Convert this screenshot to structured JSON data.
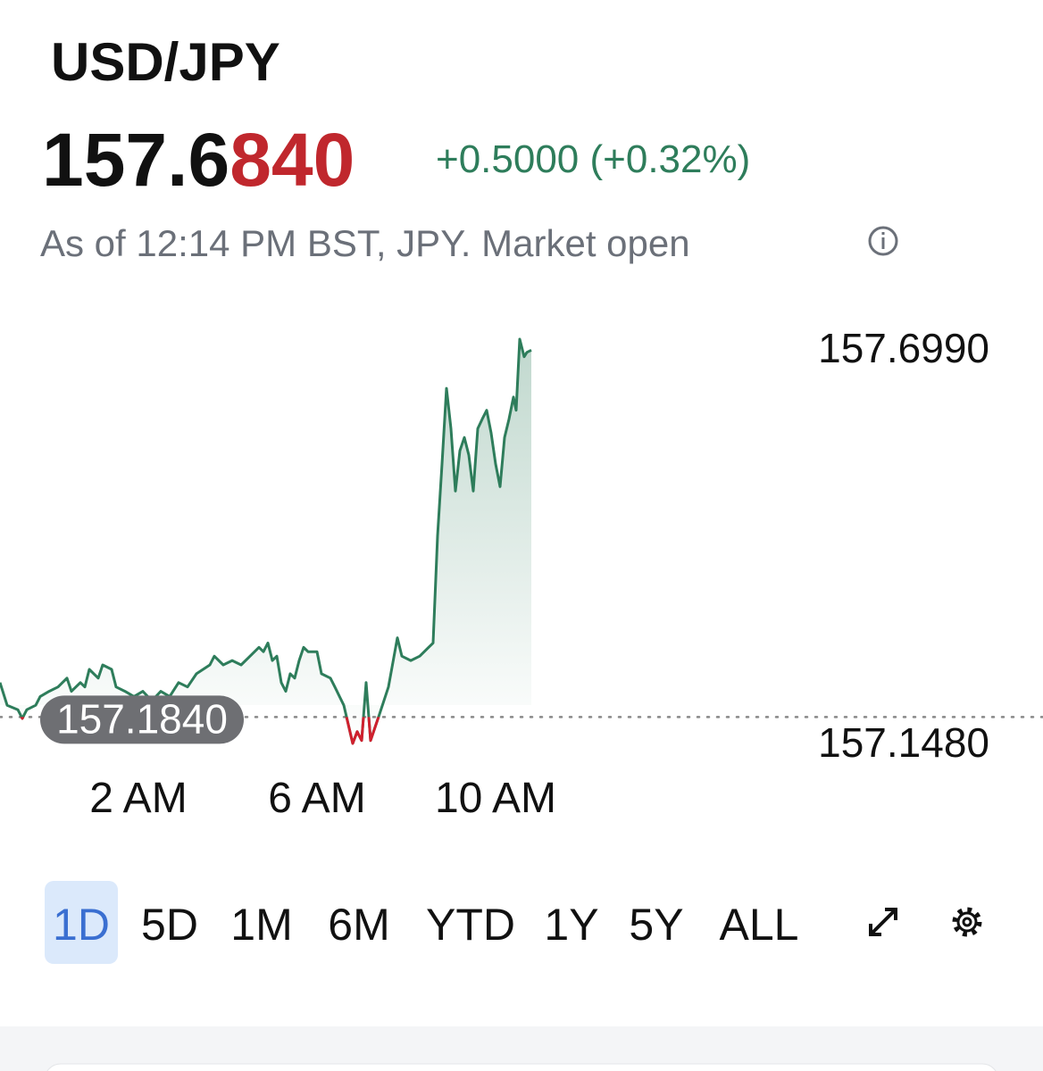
{
  "header": {
    "symbol": "USD/JPY",
    "price_main": "157.6",
    "price_tail": "840",
    "change": "+0.5000 (+0.32%)",
    "status": "As of 12:14 PM BST, JPY. Market open"
  },
  "chart_data": {
    "type": "line",
    "color": "#2e7d5b",
    "below_color": "#d0202e",
    "x": [
      -1.1,
      -0.94,
      -0.7,
      -0.6,
      -0.5,
      -0.3,
      -0.2,
      0.0,
      0.2,
      0.4,
      0.5,
      0.7,
      0.8,
      0.9,
      1.1,
      1.2,
      1.4,
      1.5,
      1.7,
      1.9,
      2.1,
      2.3,
      2.5,
      2.7,
      2.9,
      3.1,
      3.3,
      3.6,
      3.7,
      3.9,
      4.1,
      4.3,
      4.5,
      4.7,
      4.8,
      4.9,
      5.0,
      5.1,
      5.2,
      5.3,
      5.4,
      5.5,
      5.6,
      5.7,
      5.8,
      6.0,
      6.1,
      6.3,
      6.4,
      6.6,
      6.8,
      6.9,
      7.0,
      7.1,
      7.2,
      7.3,
      7.4,
      7.6,
      7.8,
      7.9,
      8.1,
      8.3,
      8.5,
      8.6,
      8.7,
      8.8,
      8.9,
      9.0,
      9.1,
      9.2,
      9.3,
      9.4,
      9.5,
      9.6,
      9.7,
      9.8,
      9.9,
      10.0,
      10.1,
      10.2,
      10.3,
      10.4,
      10.46,
      10.54,
      10.64,
      10.7,
      10.8
    ],
    "values": [
      157.231,
      157.2,
      157.194,
      157.182,
      157.194,
      157.2,
      157.212,
      157.219,
      157.225,
      157.237,
      157.219,
      157.231,
      157.225,
      157.249,
      157.237,
      157.255,
      157.249,
      157.225,
      157.219,
      157.212,
      157.219,
      157.206,
      157.219,
      157.212,
      157.231,
      157.225,
      157.243,
      157.255,
      157.267,
      157.255,
      157.261,
      157.255,
      157.267,
      157.279,
      157.273,
      157.285,
      157.261,
      157.267,
      157.231,
      157.219,
      157.243,
      157.237,
      157.261,
      157.279,
      157.273,
      157.273,
      157.243,
      157.237,
      157.225,
      157.2,
      157.148,
      157.164,
      157.152,
      157.231,
      157.152,
      157.17,
      157.188,
      157.225,
      157.292,
      157.267,
      157.261,
      157.267,
      157.279,
      157.285,
      157.431,
      157.529,
      157.632,
      157.577,
      157.492,
      157.547,
      157.565,
      157.541,
      157.492,
      157.577,
      157.59,
      157.602,
      157.571,
      157.529,
      157.498,
      157.565,
      157.59,
      157.62,
      157.602,
      157.699,
      157.675,
      157.681,
      157.684
    ],
    "xlim": [
      -1.1,
      22.26
    ],
    "xticks": [
      {
        "value": 2,
        "label": "2 AM"
      },
      {
        "value": 6,
        "label": "6 AM"
      },
      {
        "value": 10,
        "label": "10 AM"
      }
    ],
    "ylim": [
      157.148,
      157.699
    ],
    "yticks": [
      {
        "value": 157.699,
        "label": "157.6990"
      },
      {
        "value": 157.148,
        "label": "157.1480"
      }
    ],
    "previous_close": {
      "value": 157.184,
      "label": "157.1840"
    }
  },
  "ranges": {
    "options": [
      "1D",
      "5D",
      "1M",
      "6M",
      "YTD",
      "1Y",
      "5Y",
      "ALL"
    ],
    "selected": 0
  }
}
